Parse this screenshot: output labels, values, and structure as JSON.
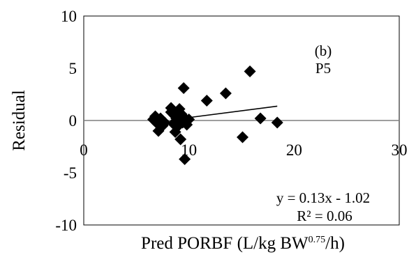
{
  "chart_data": {
    "type": "scatter",
    "panel_label": "(b)",
    "panel_id": "P5",
    "panel_id_color": "#ff0000",
    "xlabel": "Pred PORBF (L/kg BW",
    "xlabel_sup": "0.75",
    "xlabel_tail": "/h)",
    "ylabel": "Residual",
    "xlim": [
      0,
      30
    ],
    "ylim": [
      -10,
      10
    ],
    "x_ticks": [
      0,
      10,
      20,
      30
    ],
    "y_ticks": [
      10,
      5,
      0,
      -5,
      -10
    ],
    "x_tick_labels": [
      "0",
      "10",
      "20",
      "30"
    ],
    "y_tick_labels": [
      "10",
      "5",
      "0",
      "-5",
      "-10"
    ],
    "marker": "diamond",
    "marker_color": "#000000",
    "points": [
      {
        "x": 6.6,
        "y": 0.1
      },
      {
        "x": 6.8,
        "y": 0.4
      },
      {
        "x": 7.0,
        "y": -0.3
      },
      {
        "x": 7.1,
        "y": -1.0
      },
      {
        "x": 7.3,
        "y": 0.2
      },
      {
        "x": 7.5,
        "y": -0.5
      },
      {
        "x": 7.7,
        "y": -0.2
      },
      {
        "x": 8.3,
        "y": 1.2
      },
      {
        "x": 8.3,
        "y": 0.8
      },
      {
        "x": 8.5,
        "y": -0.3
      },
      {
        "x": 8.6,
        "y": 0.5
      },
      {
        "x": 8.7,
        "y": -1.1
      },
      {
        "x": 8.8,
        "y": 0.2
      },
      {
        "x": 8.9,
        "y": -0.6
      },
      {
        "x": 9.0,
        "y": 0.9
      },
      {
        "x": 9.0,
        "y": 0.0
      },
      {
        "x": 9.1,
        "y": 1.1
      },
      {
        "x": 9.2,
        "y": -1.8
      },
      {
        "x": 9.3,
        "y": 0.6
      },
      {
        "x": 9.4,
        "y": -0.2
      },
      {
        "x": 9.5,
        "y": 0.3
      },
      {
        "x": 9.5,
        "y": 3.1
      },
      {
        "x": 9.6,
        "y": -3.7
      },
      {
        "x": 9.8,
        "y": -0.4
      },
      {
        "x": 10.0,
        "y": 0.1
      },
      {
        "x": 11.7,
        "y": 1.9
      },
      {
        "x": 13.5,
        "y": 2.6
      },
      {
        "x": 15.1,
        "y": -1.6
      },
      {
        "x": 15.8,
        "y": 4.7
      },
      {
        "x": 16.8,
        "y": 0.2
      },
      {
        "x": 18.4,
        "y": -0.2
      }
    ],
    "trendline": {
      "slope": 0.13,
      "intercept": -1.02,
      "x_range": [
        9.0,
        18.4
      ]
    },
    "equation": "y = 0.13x - 1.02",
    "r2_label": "R² = 0.06",
    "grid": false,
    "legend": "none"
  }
}
